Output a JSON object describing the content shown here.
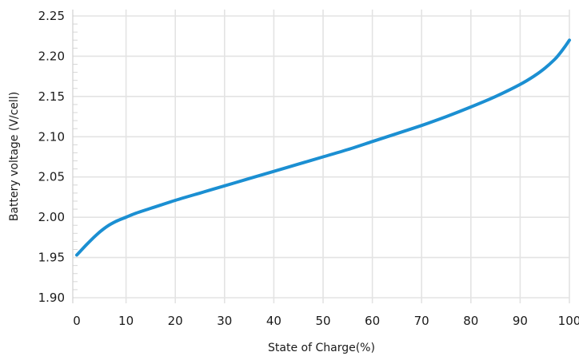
{
  "chart_data": {
    "type": "line",
    "title": "",
    "xlabel": "State of Charge(%)",
    "ylabel": "Battery voltage (V/cell)",
    "xlim": [
      0,
      100
    ],
    "ylim": [
      1.895,
      2.25
    ],
    "x_ticks": [
      "0",
      "10",
      "20",
      "30",
      "40",
      "50",
      "60",
      "70",
      "80",
      "90",
      "100"
    ],
    "y_ticks": [
      "1.90",
      "1.95",
      "2.00",
      "2.05",
      "2.10",
      "2.15",
      "2.20",
      "2.25"
    ],
    "grid": true,
    "line_color": "#1b8fd2",
    "series": [
      {
        "x": [
          0,
          2,
          4,
          6,
          8,
          10,
          12,
          15,
          20,
          25,
          30,
          35,
          40,
          45,
          50,
          55,
          60,
          65,
          70,
          75,
          80,
          85,
          90,
          93,
          95,
          97,
          98,
          99,
          100
        ],
        "values": [
          1.953,
          1.966,
          1.978,
          1.988,
          1.995,
          2.0,
          2.005,
          2.011,
          2.021,
          2.03,
          2.039,
          2.048,
          2.057,
          2.066,
          2.075,
          2.084,
          2.094,
          2.104,
          2.114,
          2.125,
          2.137,
          2.15,
          2.165,
          2.176,
          2.185,
          2.196,
          2.203,
          2.211,
          2.22
        ]
      }
    ]
  }
}
